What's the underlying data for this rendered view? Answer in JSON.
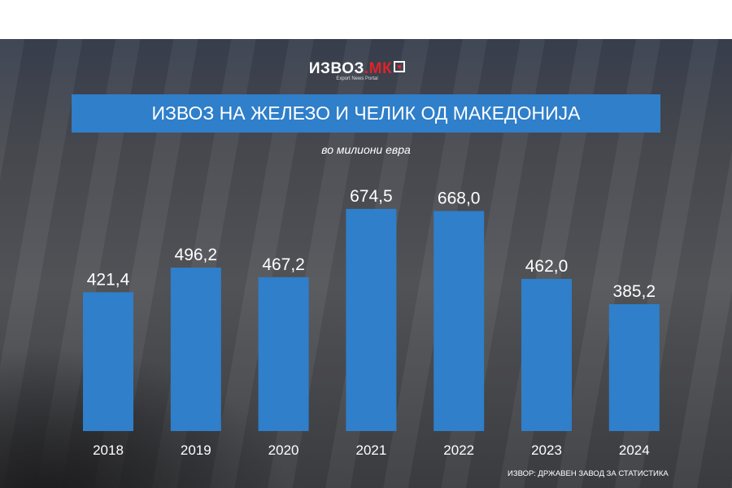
{
  "logo": {
    "text_main": "ИЗВОЗ",
    "text_accent": ".МК",
    "tagline": "Export News Portal"
  },
  "chart_data": {
    "type": "bar",
    "title": "ИЗВОЗ НА ЖЕЛЕЗО И ЧЕЛИК ОД МАКЕДОНИЈА",
    "subtitle": "во милиони евра",
    "categories": [
      "2018",
      "2019",
      "2020",
      "2021",
      "2022",
      "2023",
      "2024"
    ],
    "values": [
      421.4,
      496.2,
      467.2,
      674.5,
      668.0,
      462.0,
      385.2
    ],
    "value_labels": [
      "421,4",
      "496,2",
      "467,2",
      "674,5",
      "668,0",
      "462,0",
      "385,2"
    ],
    "bar_color": "#2f7fca",
    "grid": false,
    "ylim": [
      0,
      700
    ]
  },
  "source": "ИЗВОР: ДРЖАВЕН ЗАВОД ЗА СТАТИСТИКА"
}
